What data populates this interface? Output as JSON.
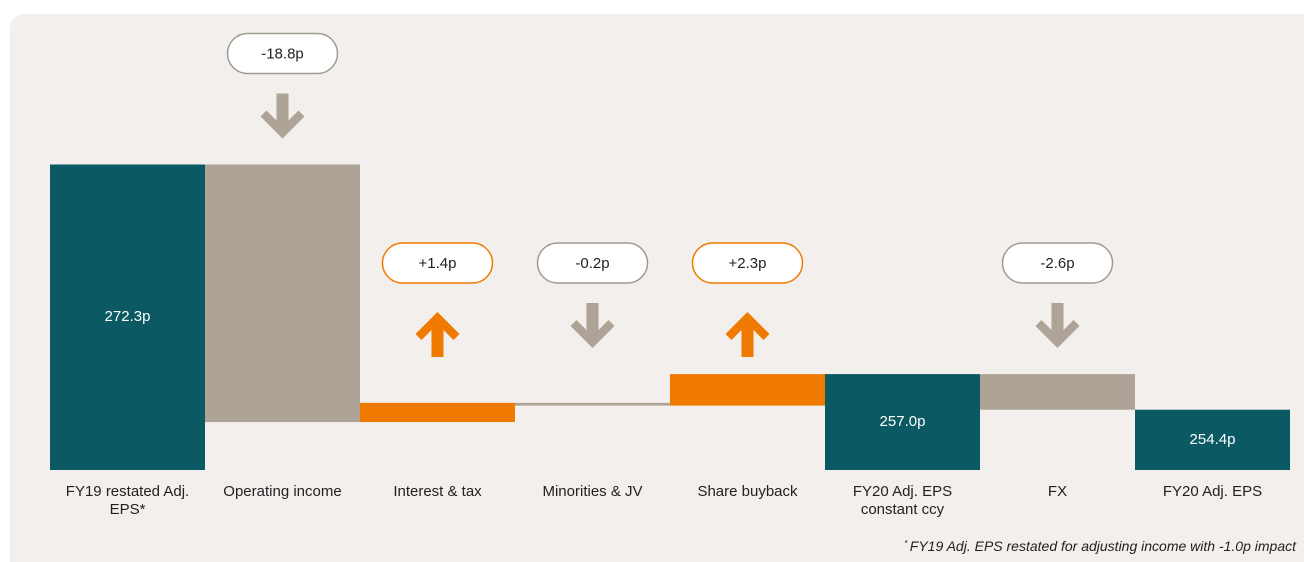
{
  "chart_data": {
    "type": "waterfall",
    "categories": [
      "FY19 restated Adj. EPS*",
      "Operating income",
      "Interest & tax",
      "Minorities & JV",
      "Share buyback",
      "FY20 Adj. EPS constant ccy",
      "FX",
      "FY20 Adj. EPS"
    ],
    "values": [
      272.3,
      -18.8,
      1.4,
      -0.2,
      2.3,
      257.0,
      -2.6,
      254.4
    ],
    "value_labels": [
      "272.3p",
      "-18.8p",
      "+1.4p",
      "-0.2p",
      "+2.3p",
      "257.0p",
      "-2.6p",
      "254.4p"
    ],
    "is_total": [
      true,
      false,
      false,
      false,
      false,
      true,
      false,
      true
    ],
    "total_color": "#0b5a63",
    "increase_color": "#f07a00",
    "decrease_color": "#ada397",
    "ylim": [
      250,
      275
    ],
    "footnote_marker": "*",
    "footnote": "FY19 Adj. EPS restated for adjusting income with -1.0p impact"
  }
}
